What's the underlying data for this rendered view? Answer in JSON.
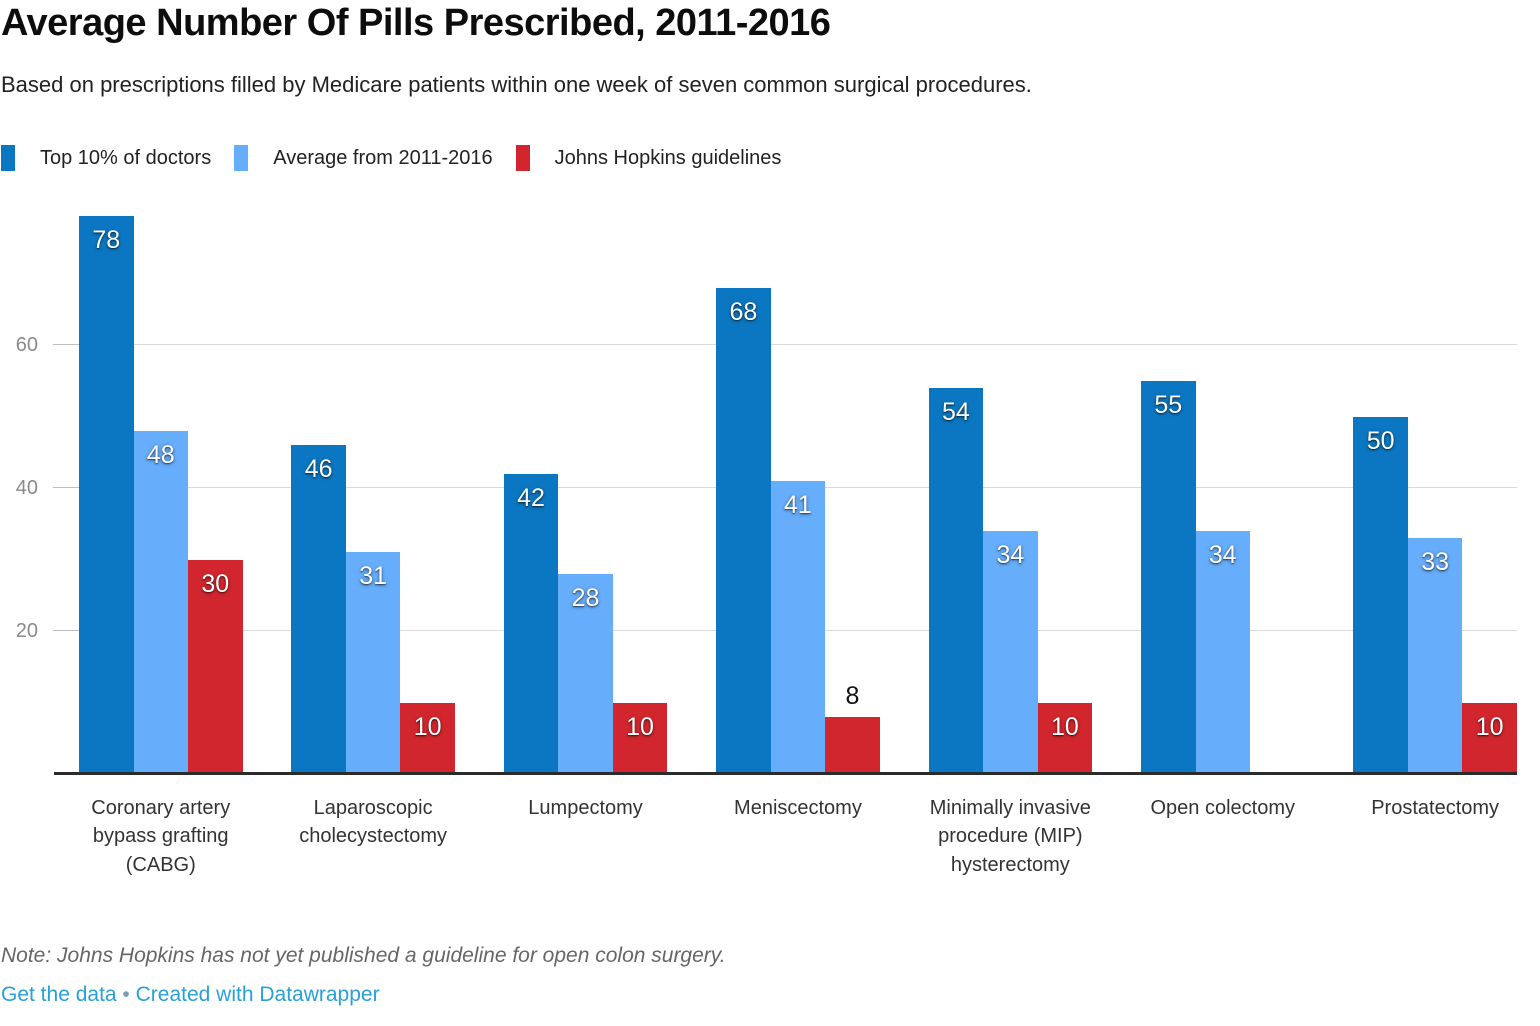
{
  "header": {
    "title": "Average Number Of Pills Prescribed, 2011-2016",
    "subtitle": "Based on prescriptions filled by Medicare patients within one week of seven common surgical procedures."
  },
  "legend": [
    {
      "label": "Top 10% of doctors",
      "color": "#0b77c2"
    },
    {
      "label": "Average from 2011-2016",
      "color": "#66adfb"
    },
    {
      "label": "Johns Hopkins guidelines",
      "color": "#d2262e"
    }
  ],
  "chart_data": {
    "type": "bar",
    "title": "Average Number Of Pills Prescribed, 2011-2016",
    "subtitle": "Based on prescriptions filled by Medicare patients within one week of seven common surgical procedures.",
    "categories": [
      "Coronary artery bypass grafting (CABG)",
      "Laparoscopic cholecystectomy",
      "Lumpectomy",
      "Meniscectomy",
      "Minimally invasive procedure (MIP) hysterectomy",
      "Open colectomy",
      "Prostatectomy"
    ],
    "series": [
      {
        "name": "Top 10% of doctors",
        "color": "#0b77c2",
        "values": [
          78,
          46,
          42,
          68,
          54,
          55,
          50
        ]
      },
      {
        "name": "Average from 2011-2016",
        "color": "#66adfb",
        "values": [
          48,
          31,
          28,
          41,
          34,
          34,
          33
        ]
      },
      {
        "name": "Johns Hopkins guidelines",
        "color": "#d2262e",
        "values": [
          30,
          10,
          10,
          8,
          10,
          null,
          10
        ]
      }
    ],
    "xlabel": "",
    "ylabel": "",
    "yticks": [
      20,
      40,
      60
    ],
    "ylim": [
      0,
      81.5
    ],
    "grid": true,
    "legend_position": "top"
  },
  "footer": {
    "note": "Note: Johns Hopkins has not yet published a guideline for open colon surgery.",
    "links": [
      {
        "label": "Get the data"
      },
      {
        "label": "Created with Datawrapper"
      }
    ],
    "separator": "•"
  }
}
